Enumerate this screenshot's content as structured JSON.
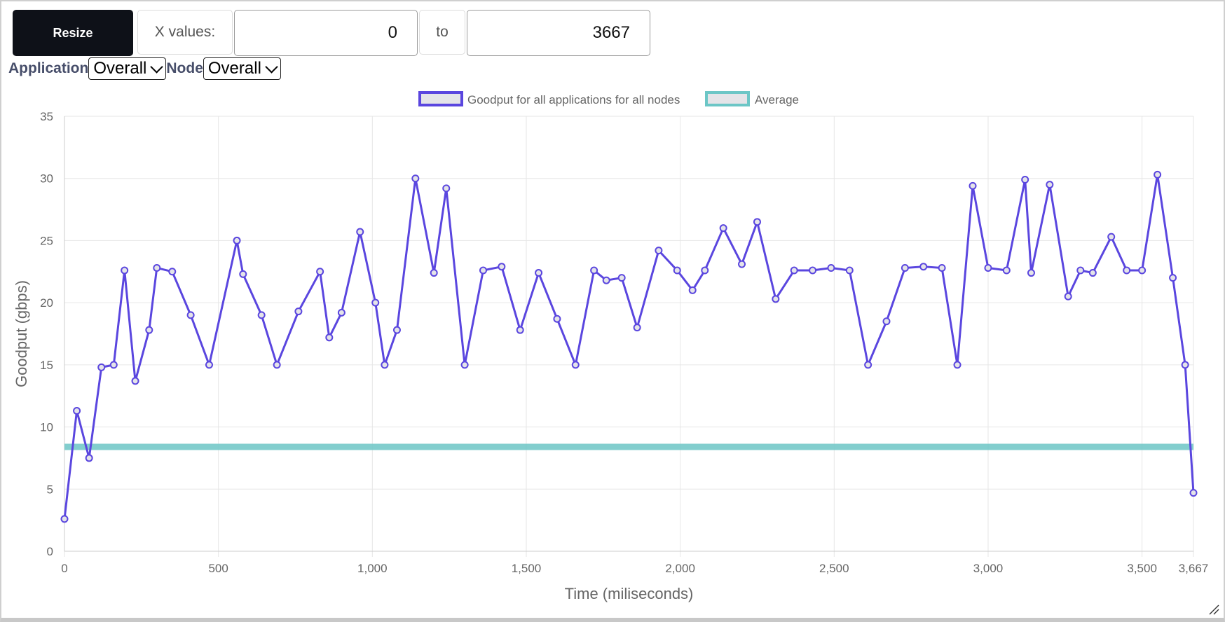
{
  "controls": {
    "resize_label": "Resize",
    "x_values_label": "X values:",
    "x_from": "0",
    "to_label": "to",
    "x_to": "3667"
  },
  "filters": {
    "application_label": "Application",
    "application_value": "Overall",
    "node_label": "Node",
    "node_value": "Overall"
  },
  "colors": {
    "series": "#5a46df",
    "series_fill": "#e4e4e8",
    "average": "#6cc6c6",
    "grid": "#e6e6e6",
    "text": "#666666"
  },
  "chart_data": {
    "type": "line",
    "xlabel": "Time (miliseconds)",
    "ylabel": "Goodput (gbps)",
    "xlim": [
      0,
      3667
    ],
    "ylim": [
      0,
      35
    ],
    "x_ticks": [
      0,
      500,
      1000,
      1500,
      2000,
      2500,
      3000,
      3500,
      3667
    ],
    "x_tick_labels": [
      "0",
      "500",
      "1,000",
      "1,500",
      "2,000",
      "2,500",
      "3,000",
      "3,500",
      "3,667"
    ],
    "y_ticks": [
      0,
      5,
      10,
      15,
      20,
      25,
      30,
      35
    ],
    "y_tick_labels": [
      "0",
      "5",
      "10",
      "15",
      "20",
      "25",
      "30",
      "35"
    ],
    "legend_position": "top",
    "grid": true,
    "series": [
      {
        "name": "Goodput for all applications for all nodes",
        "x": [
          0,
          40,
          80,
          120,
          160,
          195,
          230,
          275,
          300,
          350,
          410,
          470,
          560,
          580,
          640,
          690,
          760,
          830,
          860,
          900,
          960,
          1010,
          1040,
          1080,
          1140,
          1200,
          1240,
          1300,
          1360,
          1420,
          1480,
          1540,
          1600,
          1660,
          1720,
          1760,
          1810,
          1860,
          1930,
          1990,
          2040,
          2080,
          2140,
          2200,
          2250,
          2310,
          2370,
          2430,
          2490,
          2550,
          2610,
          2670,
          2730,
          2790,
          2850,
          2900,
          2950,
          3000,
          3060,
          3120,
          3140,
          3200,
          3260,
          3300,
          3340,
          3400,
          3450,
          3500,
          3550,
          3600,
          3640,
          3667
        ],
        "values": [
          2.6,
          11.3,
          7.5,
          14.8,
          15.0,
          22.6,
          13.7,
          17.8,
          22.8,
          22.5,
          19.0,
          15.0,
          25.0,
          22.3,
          19.0,
          15.0,
          19.3,
          22.5,
          17.2,
          19.2,
          25.7,
          20.0,
          15.0,
          17.8,
          30.0,
          22.4,
          29.2,
          15.0,
          22.6,
          22.9,
          17.8,
          22.4,
          18.7,
          15.0,
          22.6,
          21.8,
          22.0,
          18.0,
          24.2,
          22.6,
          21.0,
          22.6,
          26.0,
          23.1,
          26.5,
          20.3,
          22.6,
          22.6,
          22.8,
          22.6,
          15.0,
          18.5,
          22.8,
          22.9,
          22.8,
          15.0,
          29.4,
          22.8,
          22.6,
          29.9,
          22.4,
          29.5,
          20.5,
          22.6,
          22.4,
          25.3,
          22.6,
          22.6,
          30.3,
          22.0,
          15.0,
          4.7
        ]
      },
      {
        "name": "Average",
        "x": [
          0,
          3667
        ],
        "values": [
          8.4,
          8.4
        ]
      }
    ]
  }
}
